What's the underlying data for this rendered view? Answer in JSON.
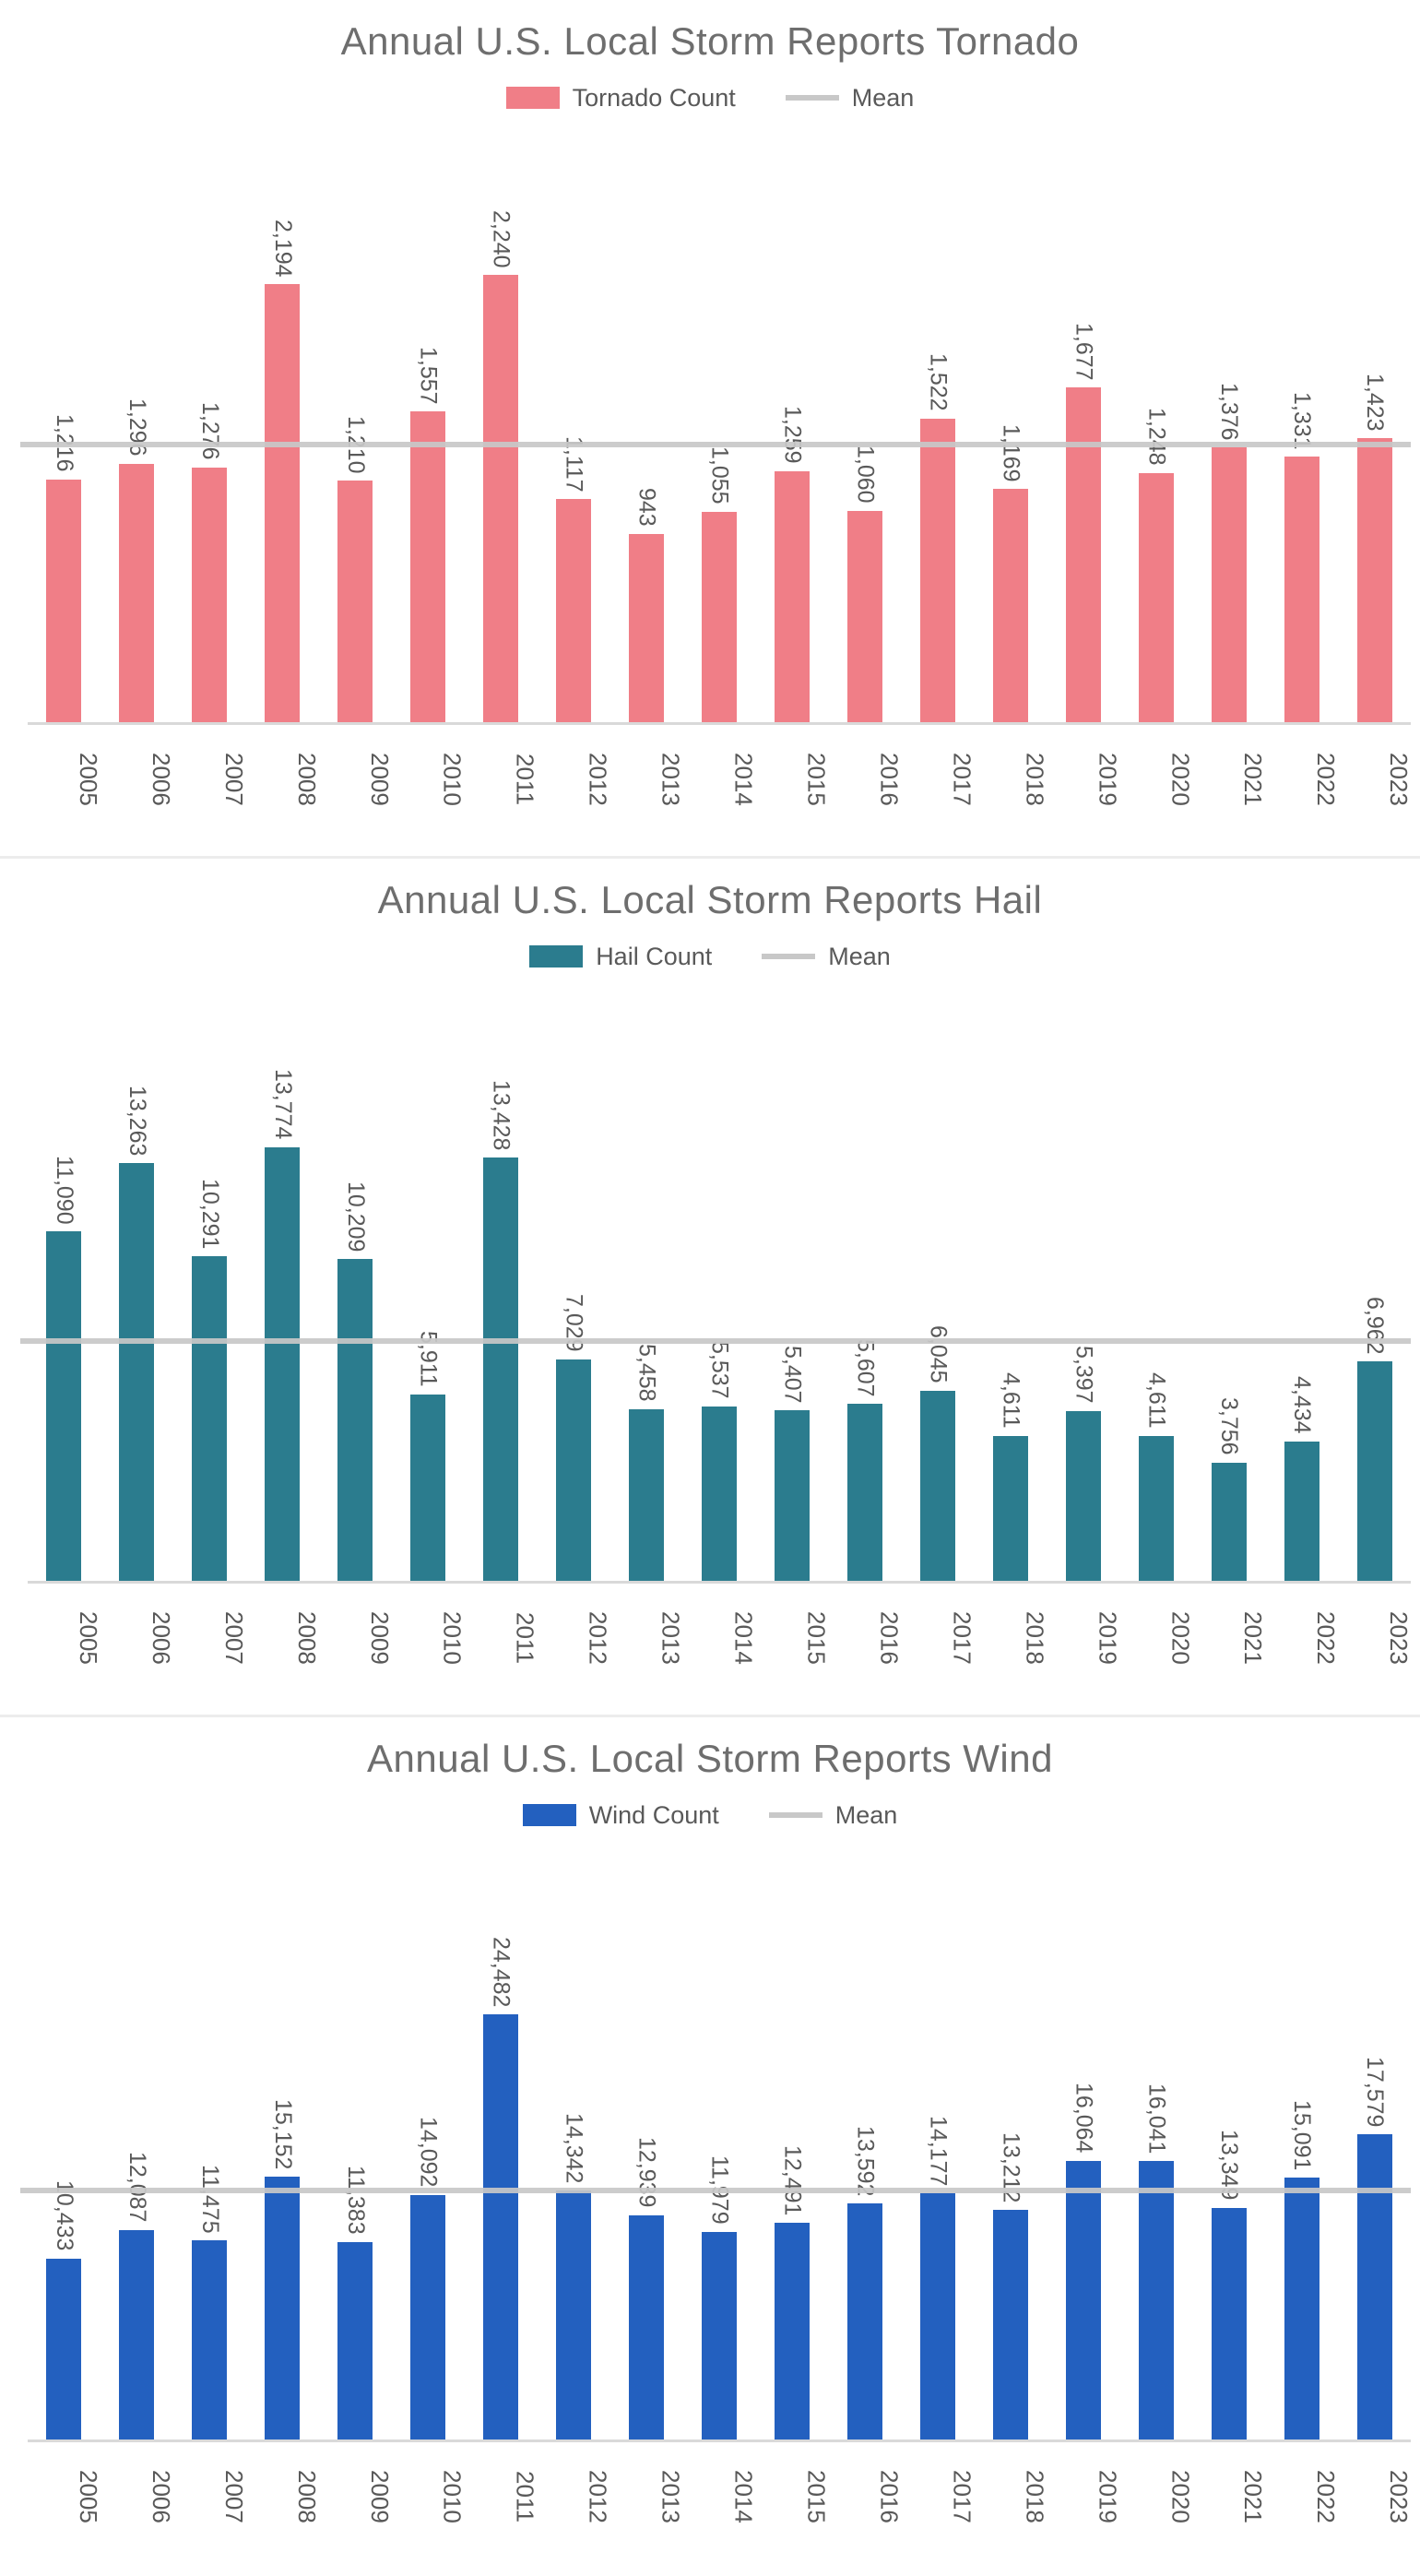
{
  "chart_data": [
    {
      "type": "bar",
      "title": "Annual U.S. Local Storm Reports Tornado",
      "legend": {
        "series": "Tornado Count",
        "mean": "Mean"
      },
      "legend_position": "top-center",
      "grid": false,
      "categories": [
        "2005",
        "2006",
        "2007",
        "2008",
        "2009",
        "2010",
        "2011",
        "2012",
        "2013",
        "2014",
        "2015",
        "2016",
        "2017",
        "2018",
        "2019",
        "2020",
        "2021",
        "2022",
        "2023"
      ],
      "values": [
        1216,
        1296,
        1276,
        2194,
        1210,
        1557,
        2240,
        1117,
        943,
        1055,
        1259,
        1060,
        1522,
        1169,
        1677,
        1248,
        1376,
        1331,
        1423
      ],
      "mean": 1377,
      "ylim": [
        0,
        3000
      ],
      "bar_color": "#f07e87",
      "mean_color": "#c8c8c8",
      "xlabel": "",
      "ylabel": ""
    },
    {
      "type": "bar",
      "title": "Annual U.S. Local Storm Reports Hail",
      "legend": {
        "series": "Hail Count",
        "mean": "Mean"
      },
      "legend_position": "top-center",
      "grid": false,
      "categories": [
        "2005",
        "2006",
        "2007",
        "2008",
        "2009",
        "2010",
        "2011",
        "2012",
        "2013",
        "2014",
        "2015",
        "2016",
        "2017",
        "2018",
        "2019",
        "2020",
        "2021",
        "2022",
        "2023"
      ],
      "values": [
        11090,
        13263,
        10291,
        13774,
        10209,
        5911,
        13428,
        7029,
        5458,
        5537,
        5407,
        5607,
        6045,
        4611,
        5397,
        4611,
        3756,
        4434,
        6962
      ],
      "mean": 7517,
      "ylim": [
        0,
        19000
      ],
      "bar_color": "#2b7c8e",
      "mean_color": "#c8c8c8",
      "xlabel": "",
      "ylabel": ""
    },
    {
      "type": "bar",
      "title": "Annual U.S. Local Storm Reports Wind",
      "legend": {
        "series": "Wind Count",
        "mean": "Mean"
      },
      "legend_position": "top-center",
      "grid": false,
      "categories": [
        "2005",
        "2006",
        "2007",
        "2008",
        "2009",
        "2010",
        "2011",
        "2012",
        "2013",
        "2014",
        "2015",
        "2016",
        "2017",
        "2018",
        "2019",
        "2020",
        "2021",
        "2022",
        "2023"
      ],
      "values": [
        10433,
        12087,
        11475,
        15152,
        11383,
        14092,
        24482,
        14342,
        12939,
        11979,
        12491,
        13592,
        14177,
        13212,
        16064,
        16041,
        13349,
        15091,
        17579
      ],
      "mean": 14208,
      "ylim": [
        0,
        34500
      ],
      "bar_color": "#2360bf",
      "mean_color": "#c8c8c8",
      "xlabel": "",
      "ylabel": ""
    }
  ],
  "text_colors": {
    "title": "#6e6e6e",
    "data_label": "#595959",
    "axis_label": "#595959"
  }
}
